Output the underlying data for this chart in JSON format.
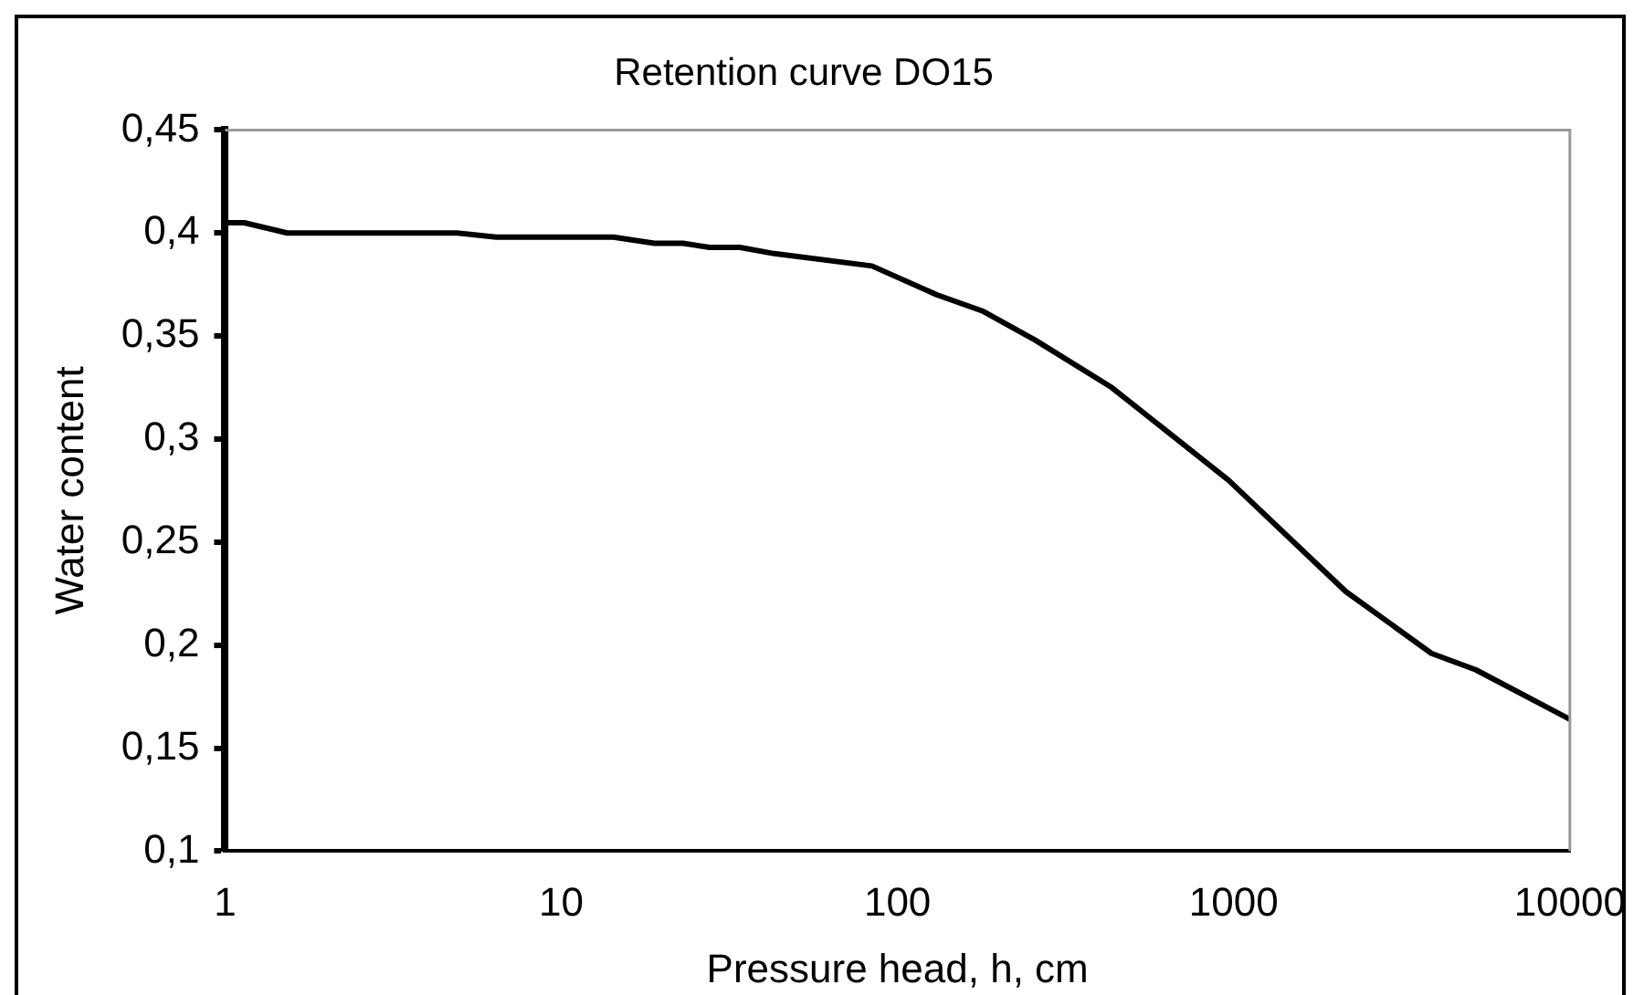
{
  "chart_data": {
    "type": "line",
    "title": "Retention curve DO15",
    "xlabel": "Pressure head, h, cm",
    "ylabel": "Water content",
    "log": "x",
    "grid": false,
    "legend": false,
    "marker": "none",
    "line_style": "solid",
    "series": [
      {
        "color": "#000000",
        "x": [
          1,
          1.14,
          1.53,
          4.9,
          6.4,
          14.3,
          18.9,
          23,
          27.6,
          34,
          43,
          84,
          131,
          180,
          257,
          434,
          966,
          2155,
          3875,
          5250,
          10000
        ],
        "values": [
          0.405,
          0.405,
          0.4,
          0.4,
          0.398,
          0.398,
          0.395,
          0.395,
          0.393,
          0.393,
          0.39,
          0.384,
          0.37,
          0.362,
          0.348,
          0.325,
          0.28,
          0.226,
          0.196,
          0.188,
          0.164
        ]
      }
    ],
    "xlim": [
      1,
      10000
    ],
    "xticks": [
      1,
      10,
      100,
      1000,
      10000
    ],
    "ylim": [
      0.1,
      0.45
    ],
    "yticks": [
      {
        "value": 0.1,
        "label": "0,1"
      },
      {
        "value": 0.15,
        "label": "0,15"
      },
      {
        "value": 0.2,
        "label": "0,2"
      },
      {
        "value": 0.25,
        "label": "0,25"
      },
      {
        "value": 0.3,
        "label": "0,3"
      },
      {
        "value": 0.35,
        "label": "0,35"
      },
      {
        "value": 0.4,
        "label": "0,4"
      },
      {
        "value": 0.45,
        "label": "0,45"
      }
    ]
  }
}
